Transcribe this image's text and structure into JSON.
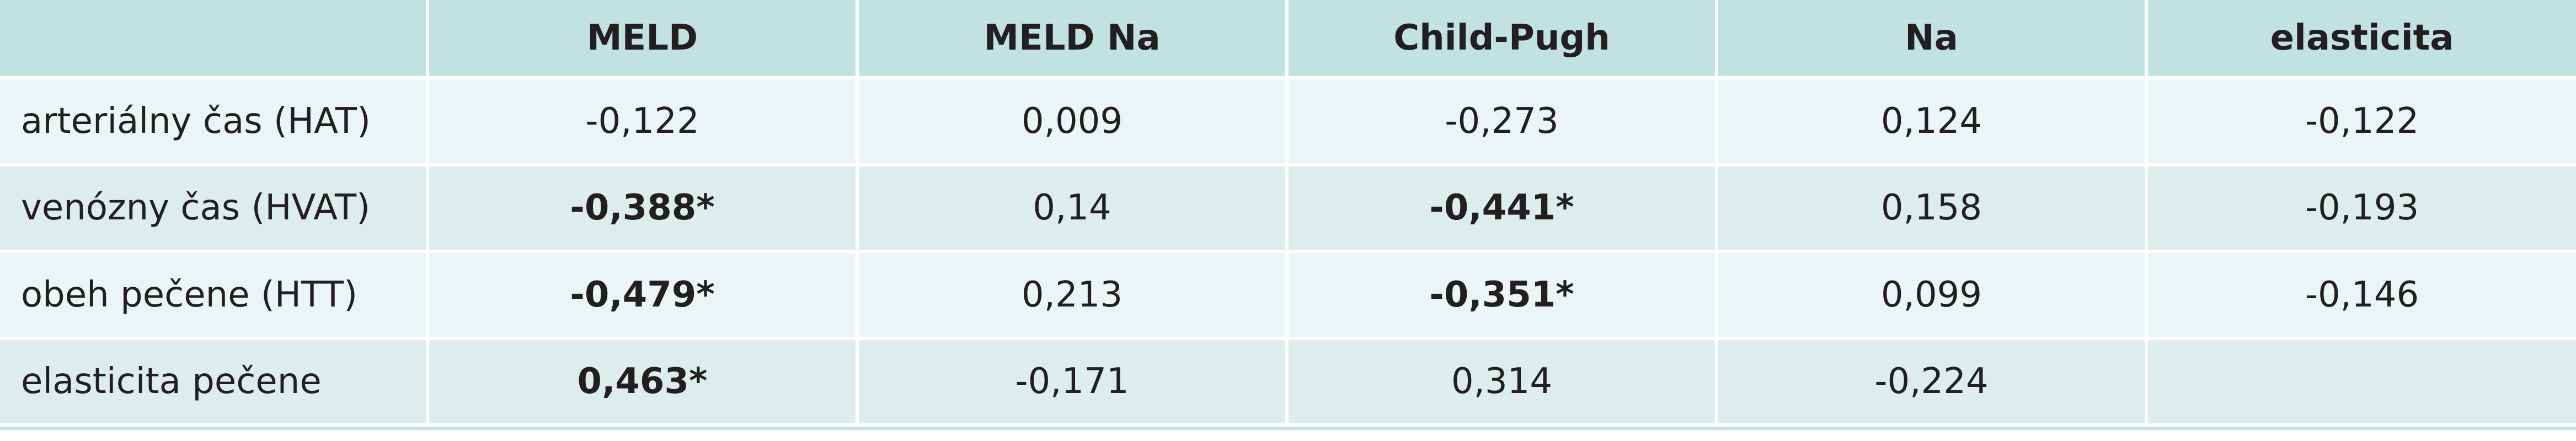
{
  "table": {
    "columns": [
      "",
      "MELD",
      "MELD Na",
      "Child-Pugh",
      "Na",
      "elasticita"
    ],
    "rows": [
      {
        "label": "arteriálny čas (HAT)",
        "values": [
          {
            "text": "-0,122",
            "bold": false
          },
          {
            "text": "0,009",
            "bold": false
          },
          {
            "text": "-0,273",
            "bold": false
          },
          {
            "text": "0,124",
            "bold": false
          },
          {
            "text": "-0,122",
            "bold": false
          }
        ]
      },
      {
        "label": "venózny čas (HVAT)",
        "values": [
          {
            "text": "-0,388*",
            "bold": true
          },
          {
            "text": "0,14",
            "bold": false
          },
          {
            "text": "-0,441*",
            "bold": true
          },
          {
            "text": "0,158",
            "bold": false
          },
          {
            "text": "-0,193",
            "bold": false
          }
        ]
      },
      {
        "label": "obeh pečene (HTT)",
        "values": [
          {
            "text": "-0,479*",
            "bold": true
          },
          {
            "text": "0,213",
            "bold": false
          },
          {
            "text": "-0,351*",
            "bold": true
          },
          {
            "text": "0,099",
            "bold": false
          },
          {
            "text": "-0,146",
            "bold": false
          }
        ]
      },
      {
        "label": "elasticita pečene",
        "values": [
          {
            "text": "0,463*",
            "bold": true
          },
          {
            "text": "-0,171",
            "bold": false
          },
          {
            "text": "0,314",
            "bold": false
          },
          {
            "text": "-0,224",
            "bold": false
          },
          {
            "text": "",
            "bold": false
          }
        ]
      }
    ]
  },
  "colors": {
    "header_bg": "#c1e2e0",
    "row_light": "#ecf5f5",
    "row_dark": "#dcedec",
    "text": "#231f20"
  }
}
